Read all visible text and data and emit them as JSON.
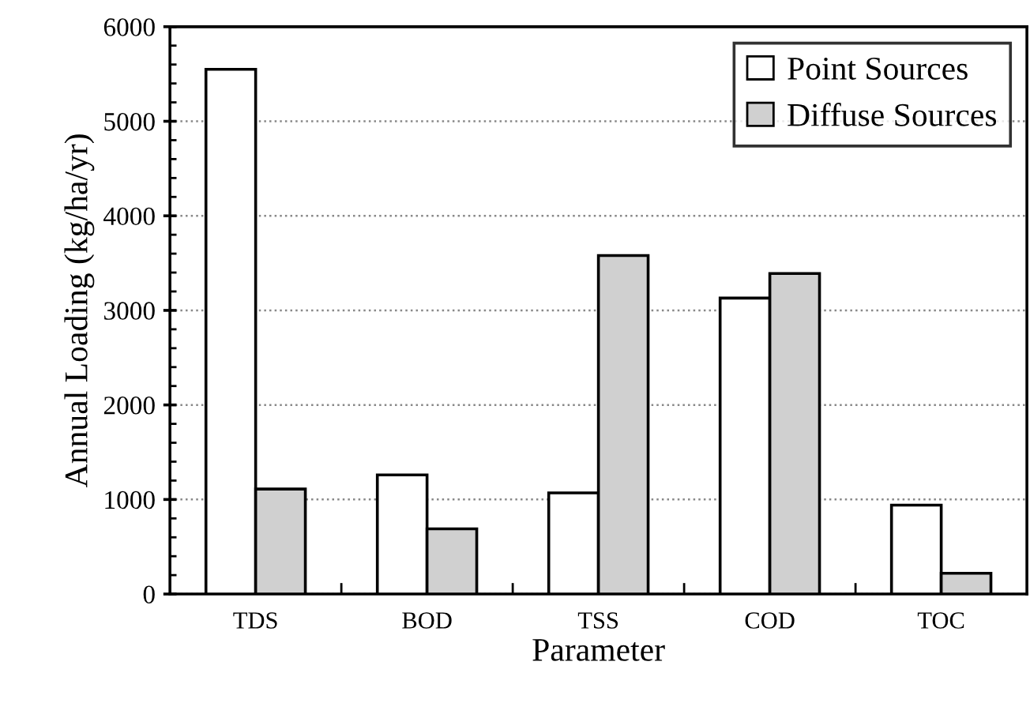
{
  "chart_data": {
    "type": "bar",
    "xlabel": "Parameter",
    "ylabel": "Annual Loading (kg/ha/yr)",
    "categories": [
      "TDS",
      "BOD",
      "TSS",
      "COD",
      "TOC"
    ],
    "series": [
      {
        "name": "Point Sources",
        "color": "#ffffff",
        "values": [
          5550,
          1260,
          1070,
          3130,
          940
        ]
      },
      {
        "name": "Diffuse Sources",
        "color": "#d0d0d0",
        "values": [
          1110,
          690,
          3580,
          3390,
          220
        ]
      }
    ],
    "ylim": [
      0,
      6000
    ],
    "yticks": [
      0,
      1000,
      2000,
      3000,
      4000,
      5000,
      6000
    ],
    "grid": "y",
    "legend": "top right"
  }
}
